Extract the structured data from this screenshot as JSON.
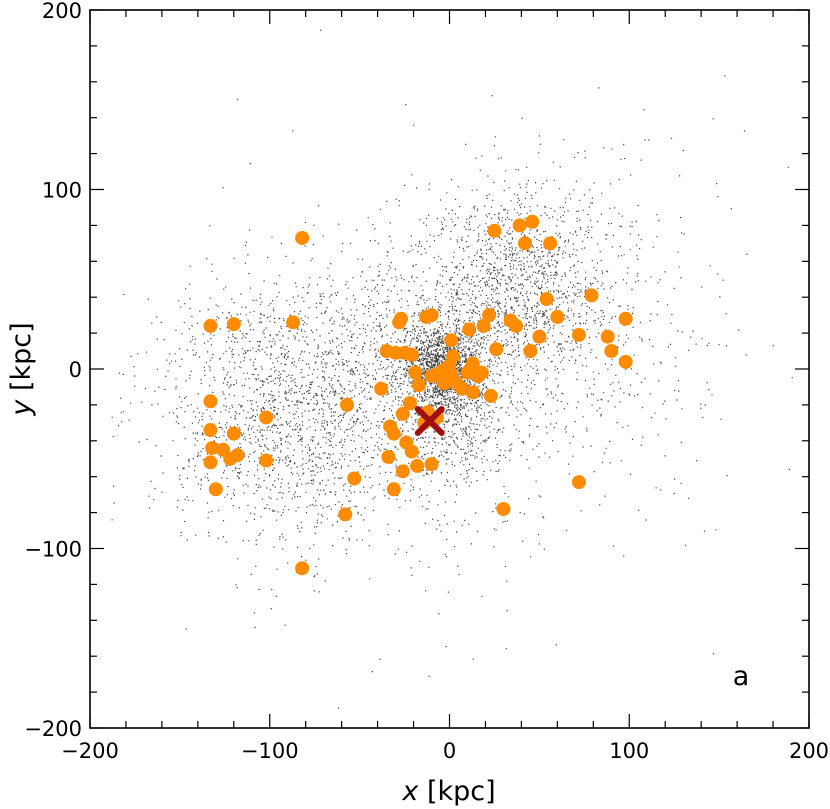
{
  "chart_data": {
    "type": "scatter",
    "title": "",
    "xlabel": "x [kpc]",
    "ylabel": "y [kpc]",
    "xlabel_var": "x",
    "xlabel_unit": "[kpc]",
    "ylabel_var": "y",
    "ylabel_unit": "[kpc]",
    "xlim": [
      -200,
      200
    ],
    "ylim": [
      -200,
      200
    ],
    "xticks": [
      "−200",
      "−100",
      "0",
      "100",
      "200"
    ],
    "yticks": [
      "−200",
      "−100",
      "0",
      "100",
      "200"
    ],
    "grid": false,
    "panel_label": "a",
    "colors": {
      "satellites": "#ff8c00",
      "host": "#a01010",
      "particles": "#000000"
    },
    "series": [
      {
        "marker": "orange-circle",
        "points": [
          [
            -133,
            24
          ],
          [
            -120,
            25
          ],
          [
            -87,
            26
          ],
          [
            -82,
            73
          ],
          [
            -133,
            -18
          ],
          [
            -133,
            -34
          ],
          [
            -120,
            -36
          ],
          [
            -102,
            -27
          ],
          [
            -132,
            -44
          ],
          [
            -126,
            -45
          ],
          [
            -122,
            -50
          ],
          [
            -118,
            -48
          ],
          [
            -133,
            -52
          ],
          [
            -102,
            -51
          ],
          [
            -130,
            -67
          ],
          [
            -57,
            -20
          ],
          [
            -53,
            -61
          ],
          [
            -58,
            -81
          ],
          [
            -82,
            -111
          ],
          [
            -31,
            -67
          ],
          [
            -27,
            28
          ],
          [
            -28,
            26
          ],
          [
            -10,
            30
          ],
          [
            -13,
            29
          ],
          [
            -35,
            10
          ],
          [
            -30,
            9
          ],
          [
            -25,
            9
          ],
          [
            -21,
            8
          ],
          [
            -38,
            -11
          ],
          [
            -33,
            -32
          ],
          [
            -31,
            -36
          ],
          [
            -26,
            -25
          ],
          [
            -22,
            -19
          ],
          [
            -34,
            -49
          ],
          [
            -24,
            -41
          ],
          [
            -21,
            -46
          ],
          [
            -26,
            -57
          ],
          [
            -18,
            -54
          ],
          [
            -10,
            -53
          ],
          [
            -17,
            -9
          ],
          [
            -19,
            -2
          ],
          [
            -10,
            -4
          ],
          [
            -7,
            -3
          ],
          [
            -4,
            -1
          ],
          [
            -3,
            -8
          ],
          [
            0,
            2
          ],
          [
            2,
            7
          ],
          [
            1,
            -3
          ],
          [
            4,
            -8
          ],
          [
            7,
            -11
          ],
          [
            10,
            -2
          ],
          [
            13,
            3
          ],
          [
            16,
            -4
          ],
          [
            18,
            -2
          ],
          [
            13,
            -13
          ],
          [
            23,
            -15
          ],
          [
            1,
            16
          ],
          [
            11,
            22
          ],
          [
            19,
            24
          ],
          [
            22,
            30
          ],
          [
            26,
            11
          ],
          [
            34,
            27
          ],
          [
            37,
            24
          ],
          [
            25,
            77
          ],
          [
            39,
            80
          ],
          [
            46,
            82
          ],
          [
            42,
            70
          ],
          [
            56,
            70
          ],
          [
            54,
            39
          ],
          [
            60,
            29
          ],
          [
            50,
            18
          ],
          [
            45,
            10
          ],
          [
            79,
            41
          ],
          [
            72,
            19
          ],
          [
            88,
            18
          ],
          [
            90,
            10
          ],
          [
            98,
            28
          ],
          [
            98,
            4
          ],
          [
            72,
            -63
          ],
          [
            30,
            -78
          ],
          [
            -12,
            -24
          ],
          [
            -7,
            -27
          ],
          [
            -14,
            -30
          ]
        ]
      },
      {
        "marker": "host-cross",
        "points": [
          [
            -11,
            -29
          ]
        ]
      }
    ]
  }
}
